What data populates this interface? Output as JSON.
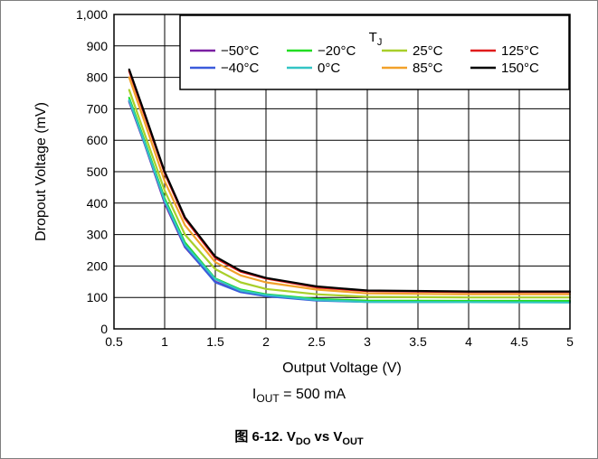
{
  "chart_data": {
    "type": "line",
    "xlabel": "Output Voltage (V)",
    "ylabel": "Dropout Voltage (mV)",
    "xlim": [
      0.5,
      5
    ],
    "ylim": [
      0,
      1000
    ],
    "xticks": [
      "0.5",
      "1",
      "1.5",
      "2",
      "2.5",
      "3",
      "3.5",
      "4",
      "4.5",
      "5"
    ],
    "yticks": [
      "0",
      "100",
      "200",
      "300",
      "400",
      "500",
      "600",
      "700",
      "800",
      "900",
      "1,000"
    ],
    "grid": true,
    "legend": {
      "title_main": "T",
      "title_sub": "J",
      "placement": "top-right"
    },
    "x": [
      0.65,
      0.8,
      1.0,
      1.2,
      1.5,
      1.75,
      2.0,
      2.5,
      3.0,
      4.0,
      5.0
    ],
    "series": [
      {
        "name": "−50°C",
        "color": "#7a1fa2",
        "values": [
          722,
          590,
          400,
          260,
          150,
          118,
          105,
          92,
          88,
          86,
          86
        ]
      },
      {
        "name": "−40°C",
        "color": "#3b5bdb",
        "values": [
          725,
          592,
          405,
          262,
          148,
          117,
          104,
          90,
          86,
          85,
          85
        ]
      },
      {
        "name": "−20°C",
        "color": "#22dd22",
        "values": [
          735,
          600,
          415,
          275,
          160,
          125,
          110,
          95,
          90,
          89,
          89
        ]
      },
      {
        "name": "0°C",
        "color": "#33c4c4",
        "values": [
          728,
          595,
          408,
          268,
          158,
          122,
          108,
          92,
          86,
          85,
          84
        ]
      },
      {
        "name": "25°C",
        "color": "#a8cf2a",
        "values": [
          760,
          622,
          440,
          300,
          190,
          148,
          127,
          110,
          102,
          100,
          100
        ]
      },
      {
        "name": "85°C",
        "color": "#f2a12a",
        "values": [
          800,
          660,
          470,
          330,
          212,
          170,
          148,
          125,
          113,
          110,
          110
        ]
      },
      {
        "name": "125°C",
        "color": "#e01b1b",
        "values": [
          820,
          682,
          495,
          350,
          225,
          182,
          160,
          132,
          120,
          117,
          117
        ]
      },
      {
        "name": "150°C",
        "color": "#000000",
        "values": [
          825,
          688,
          500,
          355,
          230,
          185,
          162,
          135,
          122,
          119,
          119
        ]
      }
    ]
  },
  "condition": {
    "prefix": "I",
    "sub": "OUT",
    "suffix": " = 500 mA"
  },
  "caption": {
    "text": "图 6-12. V",
    "sub1": "DO",
    "mid": " vs V",
    "sub2": "OUT"
  }
}
